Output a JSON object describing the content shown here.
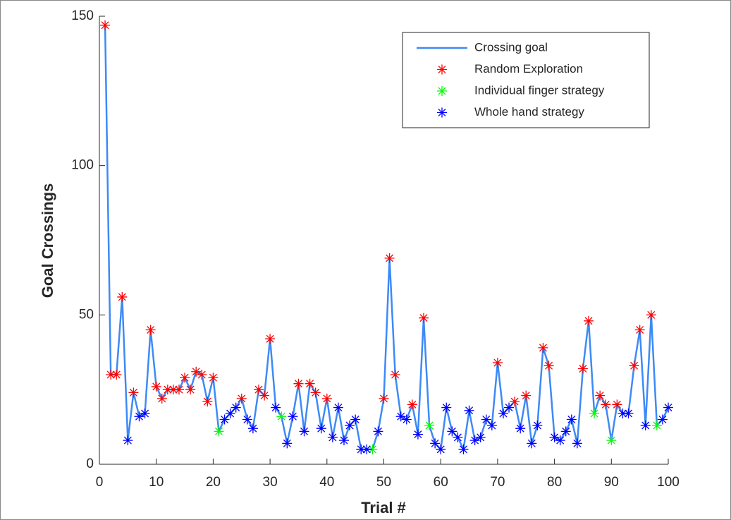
{
  "chart_data": {
    "type": "line",
    "xlabel": "Trial #",
    "ylabel": "Goal Crossings",
    "xlim": [
      0,
      100
    ],
    "ylim": [
      0,
      150
    ],
    "xticks": [
      0,
      10,
      20,
      30,
      40,
      50,
      60,
      70,
      80,
      90,
      100
    ],
    "yticks": [
      0,
      50,
      100,
      150
    ],
    "legend": "upper right",
    "series": [
      {
        "name": "Crossing goal",
        "color": "#3d8af7",
        "style": "line",
        "x": [
          1,
          2,
          3,
          4,
          5,
          6,
          7,
          8,
          9,
          10,
          11,
          12,
          13,
          14,
          15,
          16,
          17,
          18,
          19,
          20,
          21,
          22,
          23,
          24,
          25,
          26,
          27,
          28,
          29,
          30,
          31,
          32,
          33,
          34,
          35,
          36,
          37,
          38,
          39,
          40,
          41,
          42,
          43,
          44,
          45,
          46,
          47,
          48,
          49,
          50,
          51,
          52,
          53,
          54,
          55,
          56,
          57,
          58,
          59,
          60,
          61,
          62,
          63,
          64,
          65,
          66,
          67,
          68,
          69,
          70,
          71,
          72,
          73,
          74,
          75,
          76,
          77,
          78,
          79,
          80,
          81,
          82,
          83,
          84,
          85,
          86,
          87,
          88,
          89,
          90,
          91,
          92,
          93,
          94,
          95,
          96,
          97,
          98,
          99,
          100
        ],
        "values": [
          147,
          30,
          30,
          56,
          8,
          24,
          16,
          17,
          45,
          26,
          22,
          25,
          25,
          25,
          29,
          25,
          31,
          30,
          21,
          29,
          11,
          15,
          17,
          19,
          22,
          15,
          12,
          25,
          23,
          42,
          19,
          16,
          7,
          16,
          27,
          11,
          27,
          24,
          12,
          22,
          9,
          19,
          8,
          13,
          15,
          5,
          5,
          5,
          11,
          22,
          69,
          30,
          16,
          15,
          20,
          10,
          49,
          13,
          7,
          5,
          19,
          11,
          9,
          5,
          18,
          8,
          9,
          15,
          13,
          34,
          17,
          19,
          21,
          12,
          23,
          7,
          13,
          39,
          33,
          9,
          8,
          11,
          15,
          7,
          32,
          48,
          17,
          23,
          20,
          8,
          20,
          17,
          17,
          33,
          45,
          13,
          50,
          13,
          15,
          19
        ]
      },
      {
        "name": "Random Exploration",
        "color": "#ff0000",
        "style": "marker",
        "x": [
          1,
          2,
          3,
          4,
          6,
          9,
          10,
          11,
          12,
          13,
          14,
          15,
          16,
          17,
          18,
          19,
          20,
          25,
          28,
          29,
          30,
          35,
          37,
          38,
          40,
          50,
          51,
          52,
          55,
          57,
          70,
          73,
          75,
          78,
          79,
          85,
          86,
          88,
          89,
          91,
          94,
          95,
          97
        ],
        "values": [
          147,
          30,
          30,
          56,
          24,
          45,
          26,
          22,
          25,
          25,
          25,
          29,
          25,
          31,
          30,
          21,
          29,
          22,
          25,
          23,
          42,
          27,
          27,
          24,
          22,
          22,
          69,
          30,
          20,
          49,
          34,
          21,
          23,
          39,
          33,
          32,
          48,
          23,
          20,
          20,
          33,
          45,
          50
        ]
      },
      {
        "name": "Individual finger strategy",
        "color": "#00ff00",
        "style": "marker",
        "x": [
          21,
          32,
          48,
          58,
          87,
          90,
          98
        ],
        "values": [
          11,
          16,
          5,
          13,
          17,
          8,
          13
        ]
      },
      {
        "name": "Whole hand strategy",
        "color": "#0000ff",
        "style": "marker",
        "x": [
          5,
          7,
          8,
          22,
          23,
          24,
          26,
          27,
          31,
          33,
          34,
          36,
          39,
          41,
          42,
          43,
          44,
          45,
          46,
          47,
          49,
          53,
          54,
          56,
          59,
          60,
          61,
          62,
          63,
          64,
          65,
          66,
          67,
          68,
          69,
          71,
          72,
          74,
          76,
          77,
          80,
          81,
          82,
          83,
          84,
          92,
          93,
          96,
          99,
          100
        ],
        "values": [
          8,
          16,
          17,
          15,
          17,
          19,
          15,
          12,
          19,
          7,
          16,
          11,
          12,
          9,
          19,
          8,
          13,
          15,
          5,
          5,
          11,
          16,
          15,
          10,
          7,
          5,
          19,
          11,
          9,
          5,
          18,
          8,
          9,
          15,
          13,
          17,
          19,
          12,
          7,
          13,
          9,
          8,
          11,
          15,
          7,
          17,
          17,
          13,
          15,
          19
        ]
      }
    ]
  }
}
